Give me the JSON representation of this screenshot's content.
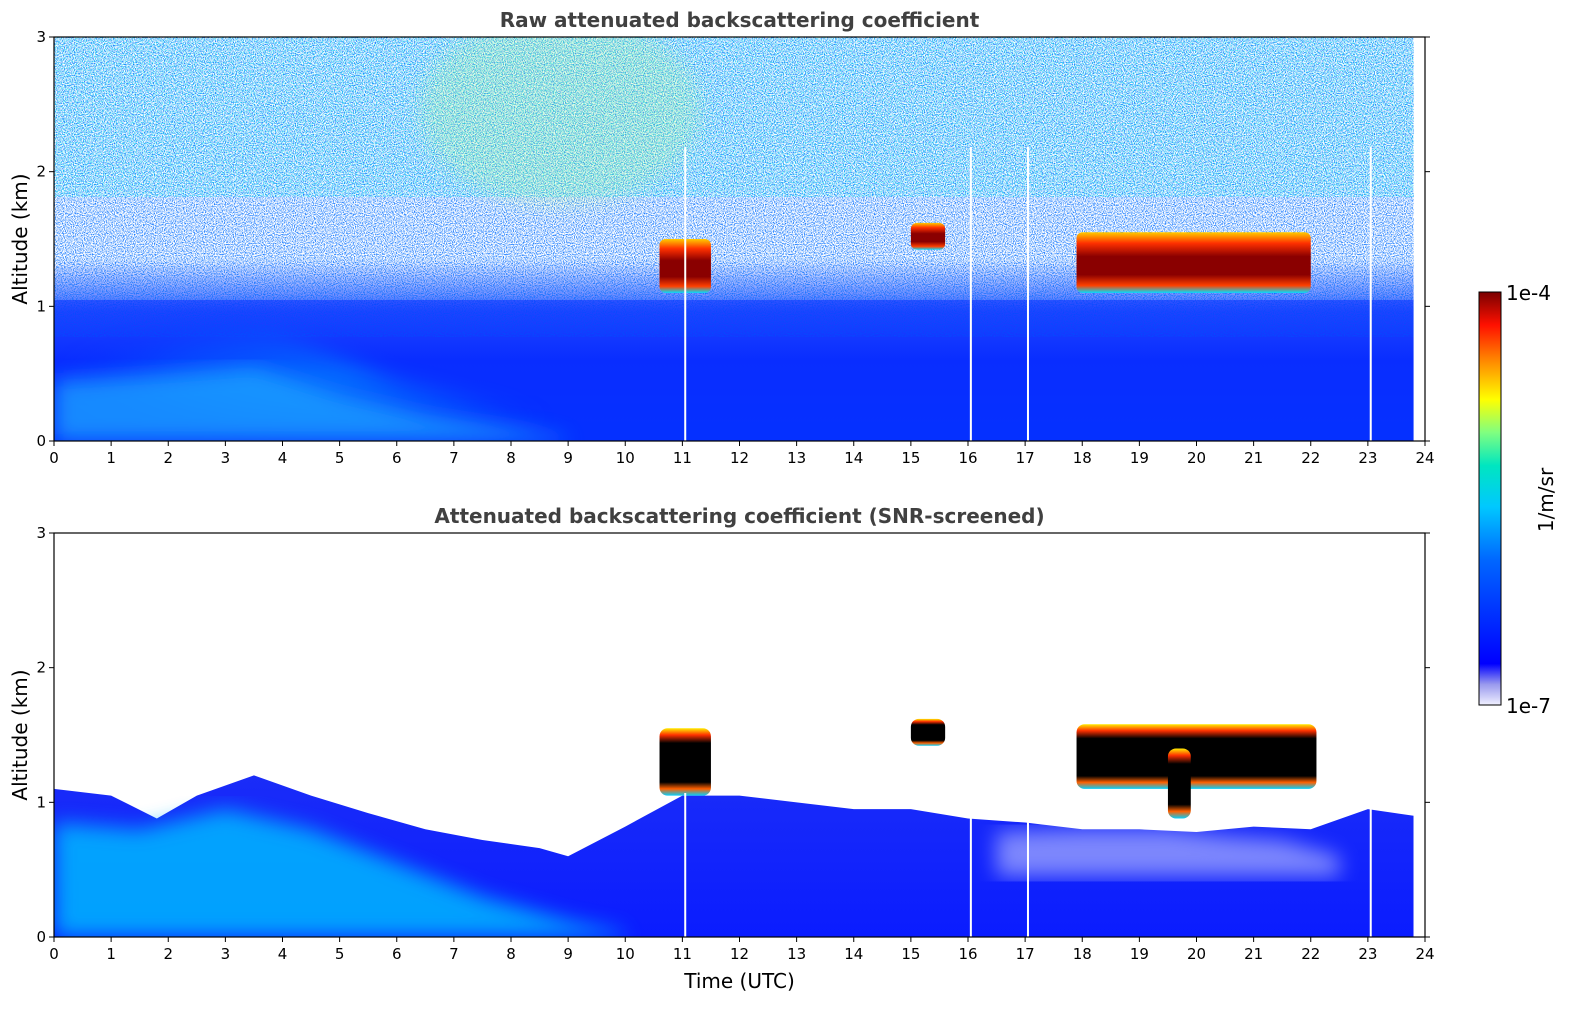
{
  "chart_data": [
    {
      "type": "heatmap",
      "title": "Raw attenuated backscattering coefficient",
      "xlabel": "",
      "ylabel": "Altitude (km)",
      "xlim": [
        0,
        24
      ],
      "ylim": [
        0,
        3
      ],
      "xticks": [
        "0",
        "1",
        "2",
        "3",
        "4",
        "5",
        "6",
        "7",
        "8",
        "9",
        "10",
        "11",
        "12",
        "13",
        "14",
        "15",
        "16",
        "17",
        "18",
        "19",
        "20",
        "21",
        "22",
        "23",
        "24"
      ],
      "yticks": [
        "0",
        "1",
        "2",
        "3"
      ],
      "data_end_time": 23.8,
      "background_noise": "speckled noise increasing with altitude above ~1 km",
      "gaps_time": [
        11.05,
        16.05,
        17.05,
        23.05
      ],
      "cloud_layers": [
        {
          "t_start": 10.6,
          "t_end": 11.5,
          "base_km": 1.1,
          "top_km": 1.5
        },
        {
          "t_start": 15.0,
          "t_end": 15.6,
          "base_km": 1.42,
          "top_km": 1.62
        },
        {
          "t_start": 17.9,
          "t_end": 22.0,
          "base_km": 1.1,
          "top_km": 1.55
        }
      ]
    },
    {
      "type": "heatmap",
      "title": "Attenuated backscattering coefficient (SNR-screened)",
      "xlabel": "Time (UTC)",
      "ylabel": "Altitude (km)",
      "xlim": [
        0,
        24
      ],
      "ylim": [
        0,
        3
      ],
      "xticks": [
        "0",
        "1",
        "2",
        "3",
        "4",
        "5",
        "6",
        "7",
        "8",
        "9",
        "10",
        "11",
        "12",
        "13",
        "14",
        "15",
        "16",
        "17",
        "18",
        "19",
        "20",
        "21",
        "22",
        "23",
        "24"
      ],
      "yticks": [
        "0",
        "1",
        "2",
        "3"
      ],
      "data_end_time": 23.8,
      "gaps_time": [
        11.05,
        16.05,
        17.05,
        23.05
      ],
      "boundary_layer_top_km": [
        [
          0,
          1.1
        ],
        [
          1,
          1.05
        ],
        [
          1.8,
          0.88
        ],
        [
          2.5,
          1.05
        ],
        [
          3.5,
          1.2
        ],
        [
          4.5,
          1.05
        ],
        [
          5.5,
          0.92
        ],
        [
          6.5,
          0.8
        ],
        [
          7.5,
          0.72
        ],
        [
          8.5,
          0.66
        ],
        [
          9,
          0.6
        ],
        [
          10,
          0.82
        ],
        [
          11,
          1.05
        ],
        [
          12,
          1.05
        ],
        [
          13,
          1.0
        ],
        [
          14,
          0.95
        ],
        [
          15,
          0.95
        ],
        [
          16,
          0.88
        ],
        [
          17,
          0.85
        ],
        [
          18,
          0.8
        ],
        [
          19,
          0.8
        ],
        [
          20,
          0.78
        ],
        [
          21,
          0.82
        ],
        [
          22,
          0.8
        ],
        [
          23,
          0.95
        ],
        [
          23.8,
          0.9
        ]
      ],
      "cloud_layers": [
        {
          "t_start": 10.6,
          "t_end": 11.5,
          "base_km": 1.05,
          "top_km": 1.55
        },
        {
          "t_start": 15.0,
          "t_end": 15.6,
          "base_km": 1.42,
          "top_km": 1.62
        },
        {
          "t_start": 17.9,
          "t_end": 22.1,
          "base_km": 1.1,
          "top_km": 1.58
        },
        {
          "t_start": 19.5,
          "t_end": 19.9,
          "base_km": 0.88,
          "top_km": 1.4
        }
      ]
    }
  ],
  "colorbar": {
    "label": "1/m/sr",
    "max_label": "1e-4",
    "min_label": "1e-7",
    "colors": [
      "#e6e6fa",
      "#9999ee",
      "#0000ff",
      "#0044ff",
      "#00aaff",
      "#00e0e0",
      "#7fff7f",
      "#ffff00",
      "#ff8000",
      "#ff2000",
      "#800000"
    ]
  }
}
